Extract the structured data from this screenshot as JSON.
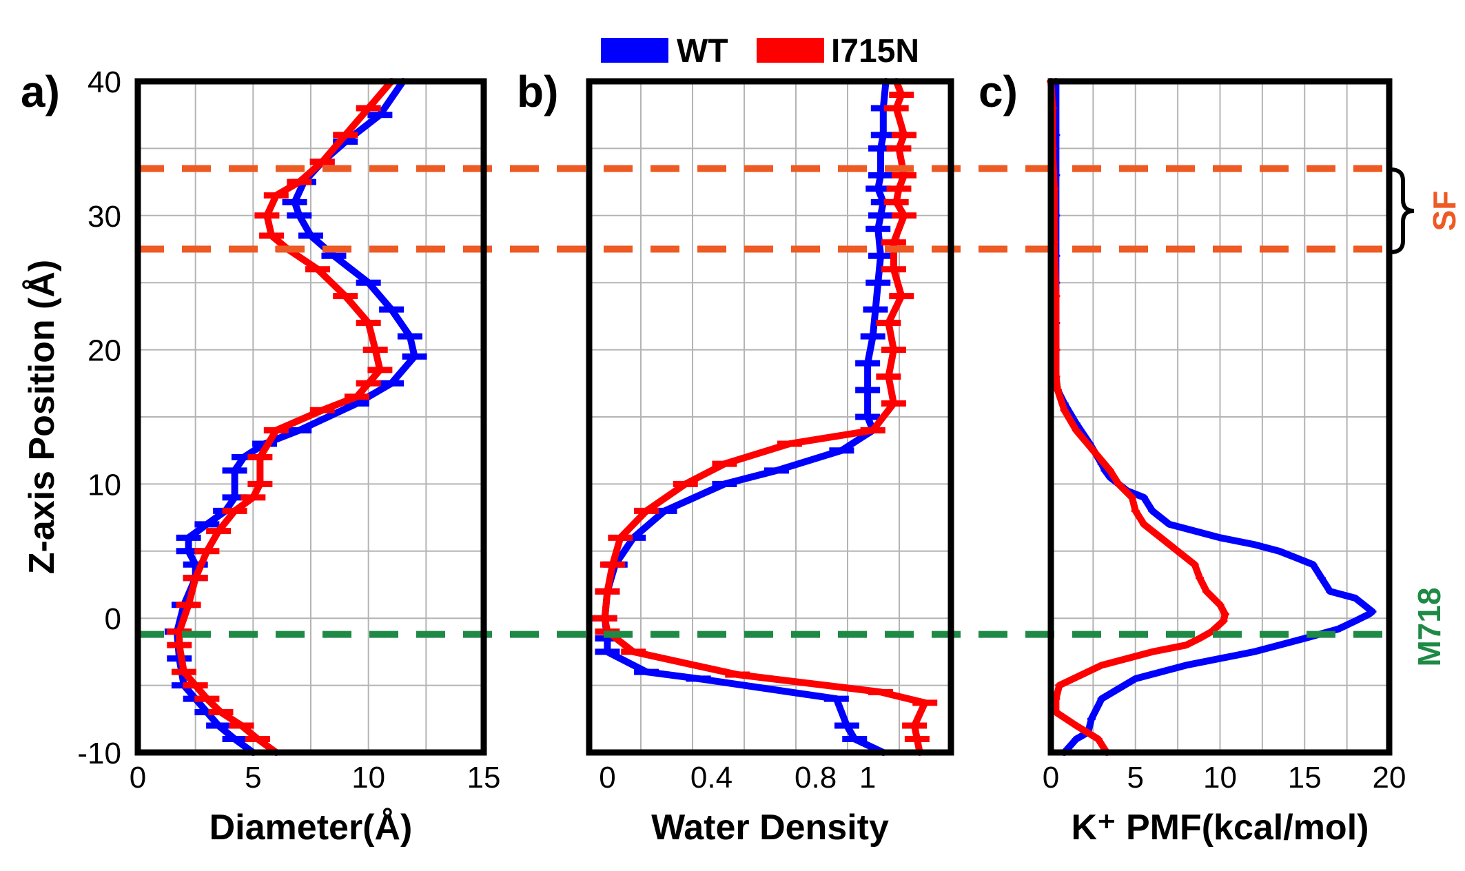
{
  "colors": {
    "wt": "#0000ff",
    "i715n": "#ff0000",
    "sf": "#ee5a24",
    "m718": "#1e8a45",
    "grid": "#b4b4b4",
    "frame": "#000000"
  },
  "legend": {
    "wt": "WT",
    "i715n": "I715N"
  },
  "annotations": {
    "sf": "SF",
    "sf_range": [
      27.5,
      33.5
    ],
    "m718": "M718",
    "m718_z": -1.2
  },
  "chart_data": [
    {
      "panel": "a)",
      "type": "line",
      "xlabel": "Diameter(Å)",
      "ylabel": "Z-axis Position (Å)",
      "xlim": [
        0,
        15
      ],
      "ylim": [
        -10,
        40
      ],
      "xticks": [
        0,
        5,
        10,
        15
      ],
      "yticks": [
        -10,
        0,
        10,
        20,
        30,
        40
      ],
      "grid": true,
      "series": [
        {
          "name": "WT",
          "x": [
            5.0,
            4.2,
            3.5,
            3.0,
            2.5,
            2.0,
            1.8,
            1.7,
            2.0,
            2.5,
            2.5,
            2.2,
            2.2,
            3.0,
            3.8,
            4.2,
            4.2,
            4.6,
            5.5,
            7.0,
            9.5,
            11.0,
            12.0,
            11.8,
            11.0,
            10.0,
            8.5,
            7.5,
            7.0,
            6.8,
            7.2,
            8.0,
            9.0,
            10.5,
            11.5
          ],
          "y": [
            -10,
            -9,
            -8,
            -7,
            -6,
            -5,
            -3,
            -1,
            1,
            3,
            4,
            5,
            6,
            7,
            8,
            9,
            11,
            12,
            13,
            14,
            16,
            17.5,
            19.5,
            21,
            23,
            25,
            27,
            28.5,
            30,
            31,
            32.5,
            34,
            35.5,
            37.5,
            40
          ]
        },
        {
          "name": "I715N",
          "x": [
            6.0,
            5.2,
            4.5,
            3.6,
            3.0,
            2.5,
            2.0,
            1.8,
            1.8,
            2.2,
            2.5,
            3.0,
            3.5,
            4.2,
            5.0,
            5.3,
            5.3,
            6.0,
            8.0,
            9.5,
            10.0,
            10.5,
            10.3,
            10.0,
            9.0,
            7.8,
            6.5,
            5.8,
            5.6,
            6.0,
            7.0,
            8.0,
            9.0,
            10.0,
            11.0
          ],
          "y": [
            -10,
            -9,
            -8,
            -7,
            -6,
            -5,
            -4,
            -2,
            -1,
            1,
            3,
            5,
            6.5,
            8,
            9,
            10,
            12,
            14,
            15.5,
            16.5,
            17.5,
            18.5,
            20,
            22,
            24,
            26,
            27.5,
            28.5,
            30,
            31.5,
            32.5,
            34,
            36,
            38,
            40
          ]
        }
      ]
    },
    {
      "panel": "b)",
      "type": "line",
      "xlabel": "Water Density",
      "xlim": [
        -0.07,
        1.32
      ],
      "ylim": [
        -10,
        40
      ],
      "xticks": [
        0,
        0.4,
        0.8,
        1
      ],
      "xticklabels": [
        "0",
        "0.4",
        "0.8",
        "1"
      ],
      "grid": true,
      "series": [
        {
          "name": "WT",
          "x": [
            1.06,
            0.95,
            0.92,
            0.88,
            0.35,
            0.15,
            0.0,
            0.0,
            -0.01,
            0.0,
            0.03,
            0.1,
            0.22,
            0.45,
            0.65,
            0.9,
            1.02,
            1.0,
            1.0,
            1.0,
            1.02,
            1.03,
            1.04,
            1.05,
            1.04,
            1.05,
            1.06,
            1.04,
            1.05,
            1.05,
            1.06,
            1.06,
            1.07
          ],
          "y": [
            -10,
            -9,
            -8,
            -6,
            -4.5,
            -4,
            -2.5,
            -1.5,
            0,
            2,
            4,
            6,
            8,
            10,
            11,
            12.5,
            14,
            15,
            17,
            19,
            21,
            23,
            25,
            27,
            29,
            30,
            31,
            32,
            33,
            35,
            36,
            38,
            40
          ]
        },
        {
          "name": "I715N",
          "x": [
            1.2,
            1.19,
            1.18,
            1.22,
            1.05,
            0.5,
            0.1,
            0.0,
            -0.01,
            0.0,
            0.02,
            0.05,
            0.15,
            0.3,
            0.45,
            0.7,
            1.02,
            1.1,
            1.08,
            1.1,
            1.08,
            1.13,
            1.1,
            1.1,
            1.14,
            1.11,
            1.12,
            1.14,
            1.12,
            1.14,
            1.11,
            1.13,
            1.11
          ],
          "y": [
            -10,
            -9,
            -8,
            -6.3,
            -5.5,
            -4.2,
            -2.5,
            -1,
            0,
            2,
            4,
            6,
            8,
            10,
            11.5,
            13,
            14,
            16,
            18,
            20,
            22,
            24,
            26,
            28,
            30,
            31,
            32,
            33,
            35,
            36,
            38,
            39,
            40
          ]
        }
      ]
    },
    {
      "panel": "c)",
      "type": "line",
      "xlabel": "K⁺ PMF(kcal/mol)",
      "xlim": [
        0,
        20
      ],
      "ylim": [
        -10,
        40
      ],
      "xticks": [
        0,
        5,
        10,
        15,
        20
      ],
      "grid": true,
      "series": [
        {
          "name": "WT",
          "x": [
            0.8,
            1.5,
            2.2,
            2.4,
            3.0,
            5.0,
            8.0,
            12.0,
            15.0,
            17.0,
            18.0,
            18.8,
            19.0,
            18.0,
            16.5,
            16.0,
            15.5,
            14.5,
            13.5,
            12.0,
            10.0,
            7.0,
            6.0,
            5.5,
            4.5,
            3.5,
            3.2,
            3.0,
            2.3,
            1.5,
            0.8,
            0.4,
            0.3,
            0.3,
            0.3,
            0.3,
            0.3,
            0.3,
            0.3,
            0.3,
            0.3
          ],
          "y": [
            -10,
            -9,
            -8.5,
            -7.5,
            -6,
            -4.5,
            -3.5,
            -2.5,
            -1.5,
            -0.8,
            -0.2,
            0.3,
            0.5,
            1.5,
            2,
            3,
            4,
            4.5,
            5,
            5.5,
            6,
            7,
            8,
            9,
            9.5,
            10.5,
            11,
            11.5,
            13,
            14.5,
            16,
            17,
            18,
            20,
            22,
            25,
            27,
            30,
            33,
            36,
            40
          ]
        },
        {
          "name": "I715N",
          "x": [
            3.3,
            2.8,
            1.5,
            0.3,
            0.3,
            0.5,
            3.0,
            6.0,
            8.0,
            8.8,
            9.5,
            10.2,
            10.3,
            10.0,
            9.2,
            8.8,
            8.5,
            7.5,
            6.5,
            5.5,
            5.0,
            4.8,
            4.0,
            3.5,
            2.5,
            1.5,
            0.8,
            0.4,
            0.3,
            0.3,
            0.3,
            0.2,
            0.2,
            0.1,
            0.1,
            0.0
          ],
          "y": [
            -10,
            -9,
            -8,
            -7,
            -6,
            -5,
            -3.5,
            -2.5,
            -2,
            -1.5,
            -1,
            -0.2,
            0.3,
            1,
            2,
            3,
            4,
            5,
            6,
            7,
            8,
            9,
            10,
            11,
            12.5,
            14,
            15.5,
            17,
            18,
            20,
            24,
            28,
            32,
            35,
            38,
            40
          ]
        }
      ]
    }
  ]
}
